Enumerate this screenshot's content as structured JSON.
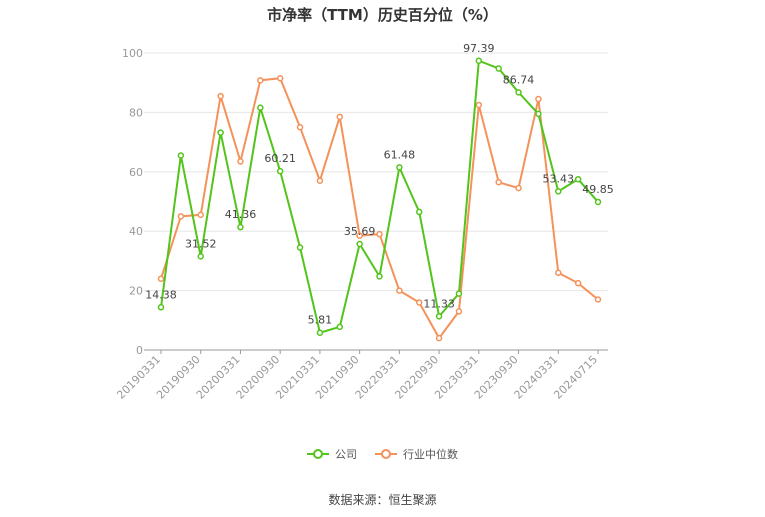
{
  "chart_data": {
    "type": "line",
    "title": "市净率（TTM）历史百分位（%）",
    "source": "数据来源：恒生聚源",
    "ylim": [
      0,
      100
    ],
    "yticks": [
      0,
      20,
      40,
      60,
      80,
      100
    ],
    "x_tick_labels": [
      "20190331",
      "20190930",
      "20200331",
      "20200930",
      "20210331",
      "20210930",
      "20220331",
      "20220930",
      "20230331",
      "20230930",
      "20240331",
      "20240715"
    ],
    "x_tick_indices": [
      0,
      2,
      4,
      6,
      8,
      10,
      12,
      14,
      16,
      18,
      20,
      22
    ],
    "grid": true,
    "legend_position": "bottom",
    "series": [
      {
        "name": "公司",
        "color": "#52c41a",
        "values": [
          14.38,
          65.5,
          31.52,
          73.2,
          41.36,
          81.6,
          60.21,
          34.5,
          5.81,
          7.8,
          35.69,
          24.8,
          61.48,
          46.5,
          11.33,
          19.0,
          97.39,
          94.8,
          86.74,
          79.5,
          53.43,
          57.5,
          49.85
        ],
        "labels": {
          "0": "14.38",
          "2": "31.52",
          "4": "41.36",
          "6": "60.21",
          "8": "5.81",
          "10": "35.69",
          "12": "61.48",
          "14": "11.33",
          "16": "97.39",
          "18": "86.74",
          "20": "53.43",
          "22": "49.85"
        }
      },
      {
        "name": "行业中位数",
        "color": "#f4925b",
        "values": [
          24.0,
          45.0,
          45.5,
          85.5,
          63.5,
          90.8,
          91.5,
          75.0,
          57.0,
          78.5,
          38.5,
          39.0,
          20.0,
          16.0,
          4.0,
          13.0,
          82.5,
          56.5,
          54.5,
          84.5,
          26.0,
          22.5,
          17.0
        ]
      }
    ]
  }
}
